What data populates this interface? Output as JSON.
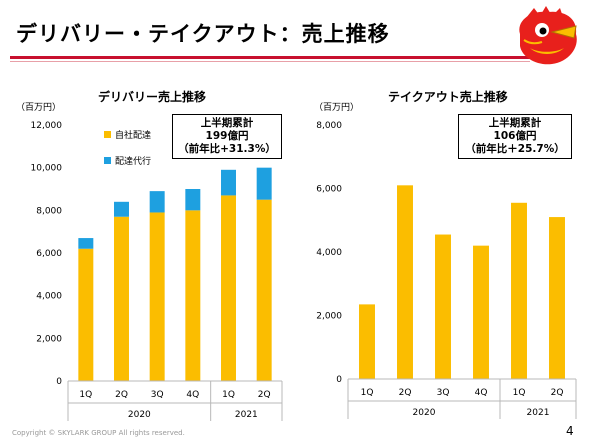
{
  "header": {
    "title": "デリバリー・テイクアウト：売上推移"
  },
  "colors": {
    "accent_red": "#c8102e",
    "own_delivery": "#fbbd00",
    "delivery_agency": "#1ea0e0"
  },
  "footer": {
    "copyright": "Copyright © SKYLARK GROUP All rights reserved.",
    "page_number": "4"
  },
  "chart_data": [
    {
      "type": "bar",
      "stacked": true,
      "title": "デリバリー売上推移",
      "unit_label": "（百万円）",
      "categories": [
        "1Q",
        "2Q",
        "3Q",
        "4Q",
        "1Q",
        "2Q"
      ],
      "year_groups": [
        {
          "label": "2020",
          "count": 4
        },
        {
          "label": "2021",
          "count": 2
        }
      ],
      "series": [
        {
          "name": "自社配達",
          "color": "#fbbd00",
          "values": [
            6200,
            7700,
            7900,
            8000,
            8700,
            8500
          ]
        },
        {
          "name": "配達代行",
          "color": "#1ea0e0",
          "values": [
            500,
            700,
            1000,
            1000,
            1200,
            1500
          ]
        }
      ],
      "ylim": [
        0,
        12000
      ],
      "yticks": [
        0,
        2000,
        4000,
        6000,
        8000,
        10000,
        12000
      ],
      "ytick_labels": [
        "0",
        "2,000",
        "4,000",
        "6,000",
        "8,000",
        "10,000",
        "12,000"
      ],
      "legend_position": "top-left",
      "callout": {
        "line1": "上半期累計",
        "line2": "199億円",
        "line3": "（前年比+31.3%）"
      }
    },
    {
      "type": "bar",
      "title": "テイクアウト売上推移",
      "unit_label": "（百万円）",
      "categories": [
        "1Q",
        "2Q",
        "3Q",
        "4Q",
        "1Q",
        "2Q"
      ],
      "year_groups": [
        {
          "label": "2020",
          "count": 4
        },
        {
          "label": "2021",
          "count": 2
        }
      ],
      "series": [
        {
          "color": "#fbbd00",
          "values": [
            2350,
            6100,
            4550,
            4200,
            5550,
            5100
          ]
        }
      ],
      "ylim": [
        0,
        8000
      ],
      "yticks": [
        0,
        2000,
        4000,
        6000,
        8000
      ],
      "ytick_labels": [
        "0",
        "2,000",
        "4,000",
        "6,000",
        "8,000"
      ],
      "callout": {
        "line1": "上半期累計",
        "line2": "106億円",
        "line3": "（前年比＋25.7%）"
      }
    }
  ]
}
